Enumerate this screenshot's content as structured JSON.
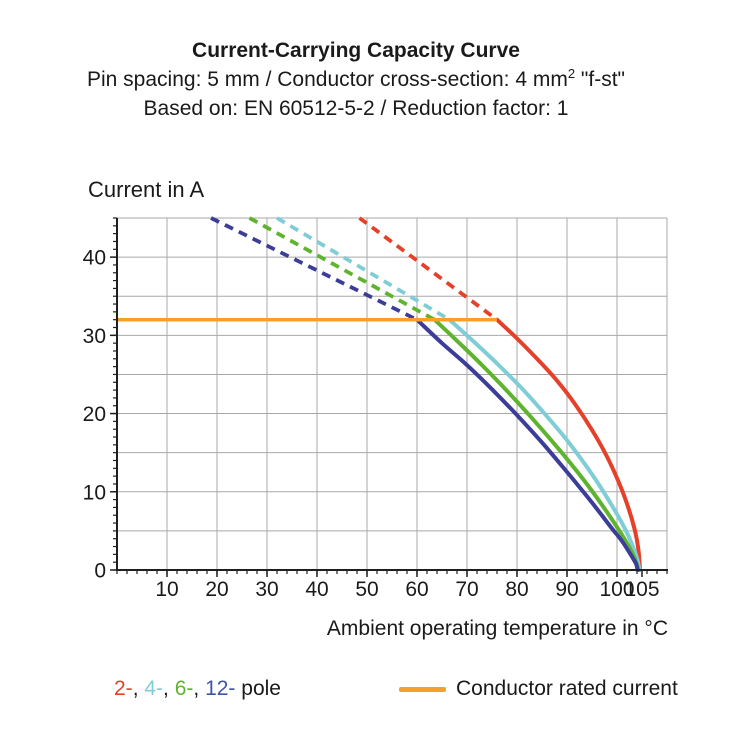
{
  "header": {
    "title": "Current-Carrying Capacity Curve",
    "subtitle_pre": "Pin spacing: 5 mm / Conductor cross-section: 4 mm",
    "subtitle_sup": "2",
    "subtitle_post": " \"f-st\"",
    "basis": "Based on: EN 60512-5-2 / Reduction factor: 1"
  },
  "legend": {
    "pole_items": [
      {
        "text": "2-",
        "color": "#e6402a"
      },
      {
        "text": ", ",
        "color": "#1a1a1a"
      },
      {
        "text": "4-",
        "color": "#7fcdd6"
      },
      {
        "text": ", ",
        "color": "#1a1a1a"
      },
      {
        "text": "6-",
        "color": "#5fb42f"
      },
      {
        "text": ", ",
        "color": "#1a1a1a"
      },
      {
        "text": "12-",
        "color": "#3c55a8"
      },
      {
        "text": " pole",
        "color": "#1a1a1a"
      }
    ],
    "rated_label": "Conductor rated current"
  },
  "chart_data": {
    "type": "line",
    "title": "Current-Carrying Capacity Curve",
    "xlabel": "Ambient operating temperature in °C",
    "ylabel": "Current in A",
    "xlim": [
      0,
      110
    ],
    "ylim": [
      0,
      45
    ],
    "xticks": [
      10,
      20,
      30,
      40,
      50,
      60,
      70,
      80,
      90,
      100,
      105
    ],
    "yticks": [
      0,
      10,
      20,
      30,
      40
    ],
    "grid": {
      "x_lines": [
        10,
        20,
        30,
        40,
        50,
        60,
        70,
        80,
        90,
        100,
        110
      ],
      "y_lines": [
        5,
        10,
        15,
        20,
        25,
        30,
        35,
        40,
        45
      ],
      "x_minor_step": 2,
      "y_minor_step": 1,
      "color": "#a8a8a8"
    },
    "axis_color": "#1f1f1f",
    "rated_current": {
      "label": "Conductor rated current",
      "value": 32,
      "x_range": [
        0,
        76
      ],
      "color": "#f6a02c"
    },
    "series": [
      {
        "name": "2-pole",
        "color": "#e6402a",
        "dashed": [
          [
            48.5,
            45
          ],
          [
            76,
            32
          ]
        ],
        "solid": [
          [
            76,
            32
          ],
          [
            80,
            29.6
          ],
          [
            84,
            27
          ],
          [
            88,
            24.2
          ],
          [
            91.5,
            21.3
          ],
          [
            95,
            17.9
          ],
          [
            98,
            14.5
          ],
          [
            100.5,
            11
          ],
          [
            102.3,
            7.9
          ],
          [
            103.6,
            5
          ],
          [
            104.3,
            2.5
          ],
          [
            104.6,
            0
          ]
        ]
      },
      {
        "name": "4-pole",
        "color": "#7fcdd6",
        "dashed": [
          [
            32,
            45
          ],
          [
            66.5,
            32
          ]
        ],
        "solid": [
          [
            66.5,
            32
          ],
          [
            71,
            29.4
          ],
          [
            76,
            26.4
          ],
          [
            81,
            23.2
          ],
          [
            85.5,
            20
          ],
          [
            90,
            16.6
          ],
          [
            93.5,
            13.6
          ],
          [
            96.5,
            10.8
          ],
          [
            99.3,
            7.9
          ],
          [
            101.5,
            5.4
          ],
          [
            103,
            3.3
          ],
          [
            104,
            1.5
          ],
          [
            104.5,
            0
          ]
        ]
      },
      {
        "name": "6-pole",
        "color": "#5fb42f",
        "dashed": [
          [
            26.5,
            45
          ],
          [
            63.5,
            32
          ]
        ],
        "solid": [
          [
            63.5,
            32
          ],
          [
            68,
            29.3
          ],
          [
            73,
            26.2
          ],
          [
            78,
            22.9
          ],
          [
            83,
            19.4
          ],
          [
            87.5,
            16.1
          ],
          [
            91.5,
            13
          ],
          [
            95,
            10.1
          ],
          [
            98,
            7.4
          ],
          [
            100.5,
            5
          ],
          [
            102.3,
            3.1
          ],
          [
            103.6,
            1.4
          ],
          [
            104.3,
            0
          ]
        ]
      },
      {
        "name": "12-pole",
        "color": "#3b3d99",
        "dashed": [
          [
            18.8,
            45
          ],
          [
            60,
            32
          ]
        ],
        "solid": [
          [
            60,
            32
          ],
          [
            65,
            29
          ],
          [
            70,
            26.2
          ],
          [
            75,
            23.1
          ],
          [
            80,
            19.8
          ],
          [
            85,
            16.3
          ],
          [
            89,
            13.3
          ],
          [
            93,
            10.2
          ],
          [
            96,
            7.8
          ],
          [
            99,
            5.3
          ],
          [
            101,
            3.7
          ],
          [
            102.8,
            1.9
          ],
          [
            103.8,
            0.8
          ],
          [
            104.1,
            0
          ]
        ]
      }
    ]
  }
}
